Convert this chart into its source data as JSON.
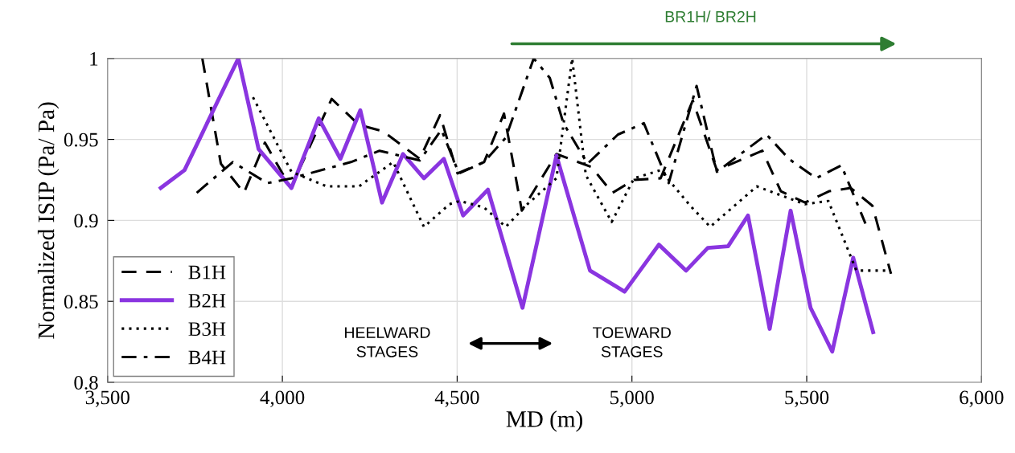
{
  "chart_data": {
    "type": "line",
    "xlabel": "MD (m)",
    "ylabel": "Normalized ISIP (Pa/ Pa)",
    "xlim": [
      3500,
      6000
    ],
    "ylim": [
      0.8,
      1
    ],
    "xticks": [
      {
        "value": 3500,
        "label": "3,500"
      },
      {
        "value": 4000,
        "label": "4,000"
      },
      {
        "value": 4500,
        "label": "4,500"
      },
      {
        "value": 5000,
        "label": "5,000"
      },
      {
        "value": 5500,
        "label": "5,500"
      },
      {
        "value": 6000,
        "label": "6,000"
      }
    ],
    "yticks": [
      0.8,
      0.85,
      0.9,
      0.95,
      1
    ],
    "grid": true,
    "legend": "bottom left",
    "marker": "none",
    "annotations": [
      "HEELWARD\nSTAGES",
      "TOEWARD\nSTAGES",
      "BR1H/ BR2H"
    ],
    "series": [
      {
        "name": "B1H",
        "color": "#000000",
        "line_style": "dashed",
        "x": [
          3771,
          3824,
          3890,
          3950,
          4024,
          4141,
          4219,
          4288,
          4393,
          4451,
          4501,
          4577,
          4634,
          4685,
          4784,
          4884,
          4944,
          5006,
          5082,
          5174,
          5243,
          5373,
          5426,
          5495,
          5564,
          5626,
          5688,
          5741
        ],
        "values": [
          1.0,
          0.935,
          0.917,
          0.948,
          0.92,
          0.975,
          0.959,
          0.955,
          0.938,
          0.965,
          0.929,
          0.936,
          0.966,
          0.906,
          0.941,
          0.933,
          0.917,
          0.925,
          0.926,
          0.974,
          0.931,
          0.943,
          0.918,
          0.911,
          0.918,
          0.92,
          0.909,
          0.867
        ]
      },
      {
        "name": "B2H",
        "color": "#8a35e0",
        "line_style": "solid",
        "x": [
          3652,
          3720,
          3874,
          3932,
          4026,
          4104,
          4166,
          4223,
          4285,
          4345,
          4405,
          4462,
          4517,
          4588,
          4687,
          4784,
          4880,
          4979,
          5077,
          5155,
          5217,
          5275,
          5332,
          5394,
          5454,
          5511,
          5573,
          5633,
          5690
        ],
        "values": [
          0.92,
          0.931,
          1.0,
          0.944,
          0.92,
          0.963,
          0.938,
          0.968,
          0.911,
          0.941,
          0.926,
          0.938,
          0.903,
          0.919,
          0.846,
          0.94,
          0.869,
          0.856,
          0.885,
          0.869,
          0.883,
          0.884,
          0.903,
          0.833,
          0.906,
          0.846,
          0.819,
          0.877,
          0.831
        ]
      },
      {
        "name": "B3H",
        "color": "#000000",
        "line_style": "dotted",
        "x": [
          3916,
          4026,
          4127,
          4219,
          4317,
          4405,
          4478,
          4508,
          4577,
          4639,
          4701,
          4784,
          4829,
          4868,
          4942,
          5006,
          5082,
          5167,
          5224,
          5357,
          5495,
          5562,
          5642,
          5725
        ],
        "values": [
          0.976,
          0.93,
          0.921,
          0.921,
          0.936,
          0.896,
          0.91,
          0.912,
          0.908,
          0.896,
          0.91,
          0.926,
          1.0,
          0.928,
          0.899,
          0.926,
          0.931,
          0.909,
          0.896,
          0.921,
          0.91,
          0.912,
          0.869,
          0.869
        ]
      },
      {
        "name": "B4H",
        "color": "#000000",
        "line_style": "dashdot",
        "x": [
          3755,
          3858,
          3957,
          4026,
          4196,
          4278,
          4393,
          4455,
          4505,
          4577,
          4639,
          4719,
          4765,
          4804,
          4873,
          4960,
          5034,
          5105,
          5185,
          5243,
          5385,
          5449,
          5527,
          5599,
          5668
        ],
        "values": [
          0.917,
          0.936,
          0.923,
          0.926,
          0.936,
          0.943,
          0.937,
          0.956,
          0.929,
          0.936,
          0.951,
          1.0,
          0.988,
          0.96,
          0.935,
          0.953,
          0.96,
          0.923,
          0.983,
          0.93,
          0.953,
          0.938,
          0.926,
          0.934,
          0.898
        ]
      }
    ]
  }
}
